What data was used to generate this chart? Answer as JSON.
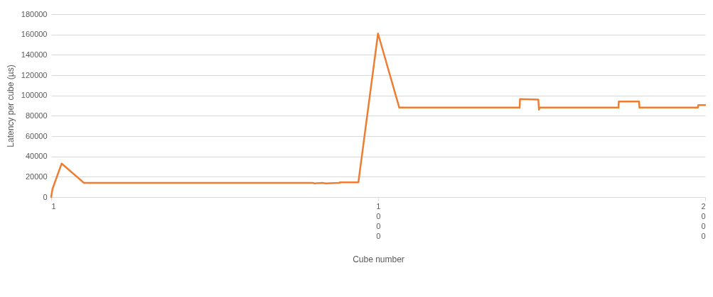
{
  "chart_data": {
    "type": "line",
    "xlabel": "Cube number",
    "ylabel": "Latency per cube (µs)",
    "x": [
      1,
      5,
      33,
      101,
      300,
      600,
      800,
      805,
      830,
      840,
      880,
      885,
      940,
      1000,
      1065,
      1200,
      1433,
      1434,
      1490,
      1492,
      1494,
      1600,
      1735,
      1736,
      1798,
      1799,
      1978,
      1979,
      2000
    ],
    "series": [
      {
        "color": "#ed7d31",
        "values": [
          0,
          8000,
          33000,
          14000,
          14000,
          14000,
          14000,
          13500,
          14000,
          13500,
          14000,
          14500,
          14500,
          161000,
          88000,
          88000,
          88000,
          96500,
          96000,
          86000,
          88000,
          88000,
          88000,
          94000,
          94000,
          88000,
          88000,
          90500,
          90500
        ]
      }
    ],
    "xlim": [
      1,
      2000
    ],
    "xticks": [
      1,
      1000,
      2000
    ],
    "ylim": [
      0,
      180000
    ],
    "yticks": [
      0,
      20000,
      40000,
      60000,
      80000,
      100000,
      120000,
      140000,
      160000,
      180000
    ],
    "grid": "y",
    "marker": "none",
    "line_style": "solid",
    "legend": false
  }
}
